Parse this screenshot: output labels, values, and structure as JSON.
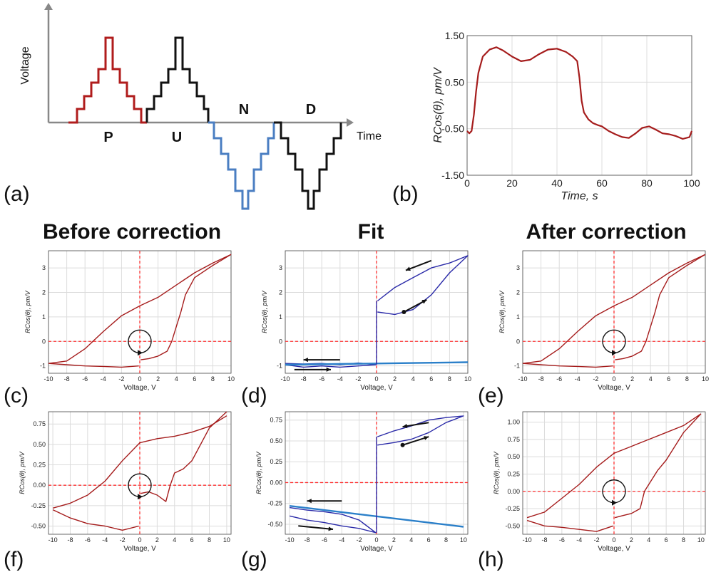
{
  "labels": {
    "col_titles": [
      "Before correction",
      "Fit",
      "After correction"
    ],
    "panel_letters": [
      "(a)",
      "(b)",
      "(c)",
      "(d)",
      "(e)",
      "(f)",
      "(g)",
      "(h)"
    ]
  },
  "colors": {
    "data": "#a51c1c",
    "raw": "#2a2aa8",
    "fit": "#2a7fc9",
    "ref": "#ff3030",
    "grid": "#dcdcdc",
    "p_pulse": "#b01c1c",
    "n_pulse": "#4a7ec2"
  },
  "chart_data": [
    {
      "id": "a",
      "type": "line",
      "xlabel": "Time",
      "ylabel": "Voltage",
      "segments": [
        "P",
        "U",
        "N",
        "D"
      ],
      "annotations": [
        "P",
        "U",
        "N",
        "D"
      ]
    },
    {
      "id": "b",
      "type": "line",
      "xlabel": "Time, s",
      "ylabel": "RCos(θ), pm/V",
      "xlim": [
        0,
        100
      ],
      "ylim": [
        -1.5,
        1.5
      ],
      "xticks": [
        0,
        20,
        40,
        60,
        80,
        100
      ],
      "yticks": [
        1.5,
        0.5,
        -0.5,
        -1.5
      ],
      "grid": true,
      "series": [
        {
          "x": [
            0,
            1,
            2,
            3,
            4,
            5,
            7,
            10,
            13,
            16,
            20,
            24,
            28,
            32,
            36,
            40,
            44,
            47,
            49,
            50,
            51,
            52,
            54,
            56,
            58,
            60,
            63,
            66,
            69,
            72,
            75,
            78,
            81,
            84,
            87,
            90,
            93,
            96,
            99,
            100
          ],
          "y": [
            -0.55,
            -0.6,
            -0.55,
            -0.2,
            0.3,
            0.7,
            1.05,
            1.2,
            1.25,
            1.18,
            1.05,
            0.95,
            0.98,
            1.1,
            1.2,
            1.22,
            1.15,
            1.05,
            0.95,
            0.6,
            0.1,
            -0.15,
            -0.3,
            -0.38,
            -0.42,
            -0.45,
            -0.55,
            -0.62,
            -0.68,
            -0.7,
            -0.6,
            -0.48,
            -0.45,
            -0.52,
            -0.6,
            -0.62,
            -0.66,
            -0.72,
            -0.68,
            -0.55
          ]
        }
      ]
    },
    {
      "id": "c",
      "type": "line",
      "title": "Before correction",
      "xlabel": "Voltage, V",
      "ylabel": "RCos(θ), pm/V",
      "xlim": [
        -10,
        10
      ],
      "ylim": [
        -1.3,
        3.7
      ],
      "xticks": [
        -10,
        -8,
        -6,
        -4,
        -2,
        0,
        2,
        4,
        6,
        8,
        10
      ],
      "yticks": [
        -1,
        0,
        1,
        2,
        3
      ],
      "grid": true,
      "series": [
        {
          "x": [
            10,
            8,
            6,
            4,
            2,
            0,
            -2,
            -4,
            -6,
            -8,
            -10
          ],
          "y": [
            3.55,
            3.2,
            2.8,
            2.3,
            1.8,
            1.45,
            1.05,
            0.4,
            -0.3,
            -0.8,
            -0.9
          ]
        },
        {
          "x": [
            -10,
            -8,
            -6,
            -4,
            -2,
            -0.1
          ],
          "y": [
            -0.9,
            -0.95,
            -1.0,
            -1.02,
            -1.05,
            -1.0
          ]
        },
        {
          "x": [
            0.1,
            1,
            2,
            3,
            3.5,
            4,
            4.5,
            5,
            6,
            8,
            10
          ],
          "y": [
            -0.75,
            -0.7,
            -0.6,
            -0.4,
            0.0,
            0.6,
            1.2,
            1.9,
            2.6,
            3.1,
            3.55
          ]
        }
      ]
    },
    {
      "id": "d",
      "type": "line",
      "title": "Fit",
      "xlabel": "Voltage, V",
      "ylabel": "RCos(θ), pm/V",
      "xlim": [
        -10,
        10
      ],
      "ylim": [
        -1.3,
        3.7
      ],
      "xticks": [
        -10,
        -8,
        -6,
        -4,
        -2,
        0,
        2,
        4,
        6,
        8,
        10
      ],
      "yticks": [
        -1,
        0,
        1,
        2,
        3
      ],
      "grid": true,
      "series": [
        {
          "x": [
            0.1,
            2,
            4,
            6,
            8,
            10,
            8,
            6,
            4,
            2,
            0.1
          ],
          "y": [
            1.2,
            1.1,
            1.3,
            1.9,
            2.8,
            3.5,
            3.2,
            3.0,
            2.6,
            2.2,
            1.65
          ]
        },
        {
          "x": [
            -10,
            -8,
            -6,
            -4,
            -2,
            -0.1,
            -2,
            -4,
            -6,
            -8,
            -10
          ],
          "y": [
            -0.95,
            -1.05,
            -1.0,
            -1.05,
            -1.0,
            -0.95,
            -0.88,
            -0.95,
            -0.9,
            -0.92,
            -0.9
          ]
        },
        {
          "x": [
            -10,
            10
          ],
          "y": [
            -0.95,
            -0.85
          ]
        },
        {
          "x": [
            0,
            0
          ],
          "y": [
            -0.95,
            1.65
          ]
        }
      ]
    },
    {
      "id": "e",
      "type": "line",
      "title": "After correction",
      "xlabel": "Voltage, V",
      "ylabel": "RCos(θ), pm/V",
      "xlim": [
        -10,
        10
      ],
      "ylim": [
        -1.3,
        3.7
      ],
      "xticks": [
        -10,
        -8,
        -6,
        -4,
        -2,
        0,
        2,
        4,
        6,
        8,
        10
      ],
      "yticks": [
        -1,
        0,
        1,
        2,
        3
      ],
      "grid": true,
      "series": [
        {
          "x": [
            10,
            8,
            6,
            4,
            2,
            0,
            -2,
            -4,
            -6,
            -8,
            -10
          ],
          "y": [
            3.55,
            3.2,
            2.8,
            2.3,
            1.8,
            1.45,
            1.05,
            0.4,
            -0.3,
            -0.8,
            -0.9
          ]
        },
        {
          "x": [
            -10,
            -8,
            -6,
            -4,
            -2,
            -0.1
          ],
          "y": [
            -0.9,
            -0.95,
            -1.0,
            -1.02,
            -1.05,
            -1.0
          ]
        },
        {
          "x": [
            0.1,
            1,
            2,
            3,
            3.5,
            4,
            4.5,
            5,
            6,
            8,
            10
          ],
          "y": [
            -0.75,
            -0.7,
            -0.6,
            -0.4,
            0.0,
            0.6,
            1.2,
            1.9,
            2.6,
            3.1,
            3.55
          ]
        }
      ]
    },
    {
      "id": "f",
      "type": "line",
      "xlabel": "Voltage, V",
      "ylabel": "RCos(θ), pm/V",
      "xlim": [
        -10.5,
        10.5
      ],
      "ylim": [
        -0.6,
        0.9
      ],
      "xticks": [
        -10,
        -8,
        -6,
        -4,
        -2,
        0,
        2,
        4,
        6,
        8,
        10
      ],
      "yticks": [
        -0.5,
        -0.25,
        0.0,
        0.25,
        0.5,
        0.75
      ],
      "grid": true,
      "series": [
        {
          "x": [
            10,
            8,
            6,
            4,
            2,
            0,
            -2,
            -4,
            -6,
            -8,
            -10
          ],
          "y": [
            0.85,
            0.72,
            0.65,
            0.6,
            0.57,
            0.52,
            0.3,
            0.05,
            -0.12,
            -0.22,
            -0.28
          ]
        },
        {
          "x": [
            -10,
            -8,
            -6,
            -4,
            -2,
            -0.1
          ],
          "y": [
            -0.3,
            -0.4,
            -0.47,
            -0.5,
            -0.55,
            -0.5
          ]
        },
        {
          "x": [
            0.1,
            1,
            2,
            3,
            3.5,
            4,
            5,
            6,
            8,
            10
          ],
          "y": [
            -0.1,
            -0.08,
            -0.12,
            -0.2,
            0.0,
            0.15,
            0.2,
            0.3,
            0.7,
            0.9
          ]
        }
      ]
    },
    {
      "id": "g",
      "type": "line",
      "xlabel": "Voltage, V",
      "ylabel": "RCos(θ), pm/V",
      "xlim": [
        -10.5,
        10.5
      ],
      "ylim": [
        -0.62,
        0.85
      ],
      "xticks": [
        -10,
        -8,
        -6,
        -4,
        -2,
        0,
        2,
        4,
        6,
        8,
        10
      ],
      "yticks": [
        -0.5,
        -0.25,
        0.0,
        0.25,
        0.5,
        0.75
      ],
      "grid": true,
      "series": [
        {
          "x": [
            0.1,
            2,
            4,
            6,
            8,
            10,
            8,
            6,
            4,
            2,
            0.1
          ],
          "y": [
            0.45,
            0.48,
            0.52,
            0.6,
            0.72,
            0.8,
            0.78,
            0.75,
            0.68,
            0.62,
            0.55
          ]
        },
        {
          "x": [
            -10,
            -8,
            -6,
            -4,
            -2,
            -0.1,
            -2,
            -4,
            -6,
            -8,
            -10
          ],
          "y": [
            -0.4,
            -0.45,
            -0.48,
            -0.52,
            -0.55,
            -0.6,
            -0.45,
            -0.38,
            -0.35,
            -0.33,
            -0.3
          ]
        },
        {
          "x": [
            -10,
            10
          ],
          "y": [
            -0.28,
            -0.53
          ]
        },
        {
          "x": [
            0,
            0
          ],
          "y": [
            -0.6,
            0.55
          ]
        }
      ]
    },
    {
      "id": "h",
      "type": "line",
      "xlabel": "Voltage, V",
      "ylabel": "RCos(θ), pm/V",
      "xlim": [
        -10.5,
        10.5
      ],
      "ylim": [
        -0.62,
        1.15
      ],
      "xticks": [
        -10,
        -8,
        -6,
        -4,
        -2,
        0,
        2,
        4,
        6,
        8,
        10
      ],
      "yticks": [
        -0.5,
        -0.25,
        0.0,
        0.25,
        0.5,
        0.75,
        1.0
      ],
      "grid": true,
      "series": [
        {
          "x": [
            10,
            8,
            6,
            4,
            2,
            0,
            -2,
            -4,
            -6,
            -8,
            -10
          ],
          "y": [
            1.12,
            0.95,
            0.85,
            0.75,
            0.65,
            0.55,
            0.35,
            0.1,
            -0.1,
            -0.3,
            -0.38
          ]
        },
        {
          "x": [
            -10,
            -8,
            -6,
            -4,
            -2,
            -0.1
          ],
          "y": [
            -0.42,
            -0.5,
            -0.52,
            -0.55,
            -0.58,
            -0.5
          ]
        },
        {
          "x": [
            0.1,
            1,
            2,
            3,
            3.5,
            4,
            5,
            6,
            8,
            10
          ],
          "y": [
            -0.38,
            -0.35,
            -0.32,
            -0.25,
            0.0,
            0.1,
            0.3,
            0.45,
            0.85,
            1.12
          ]
        }
      ]
    }
  ]
}
